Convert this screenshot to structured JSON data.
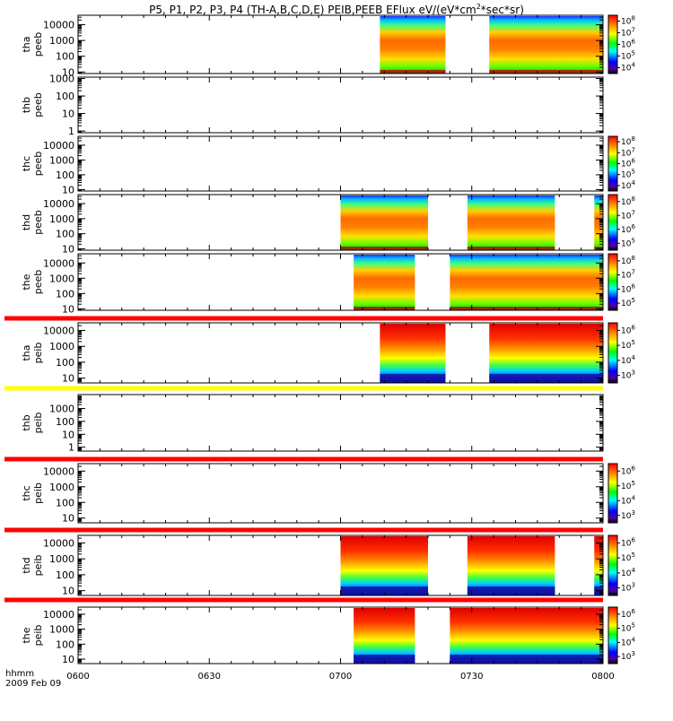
{
  "chart_data": {
    "type": "heatmap",
    "title": "P5, P1, P2, P3, P4 (TH-A,B,C,D,E) PEIB,PEEB EFlux eV/(eV*cm^2*sec*sr)",
    "title_parts": {
      "main": "P5, P1, P2, P3, P4 (TH-A,B,C,D,E) PEIB,PEEB EFlux eV/(eV*cm",
      "sup": "2",
      "tail": "*sec*sr)"
    },
    "x_axis": {
      "label_line1": "hhmm",
      "label_line2": "2009 Feb 09",
      "range": [
        "0600",
        "0800"
      ],
      "ticks": [
        "0600",
        "0630",
        "0700",
        "0730",
        "0800"
      ]
    },
    "panels": [
      {
        "probe": "tha",
        "product": "peeb",
        "ylim": [
          8,
          40000
        ],
        "log": true,
        "ytick_labels": [
          "10",
          "100",
          "1000",
          "10000"
        ],
        "cbar": {
          "colors": "rainbow",
          "labels": [
            "10^8",
            "10^7",
            "10^6",
            "10^5",
            "10^4"
          ]
        },
        "intervals": [
          {
            "start": "0709",
            "end": "0724"
          },
          {
            "start": "0734",
            "end": "0800"
          }
        ],
        "kind": "electron"
      },
      {
        "probe": "thb",
        "product": "peeb",
        "ylim": [
          0.8,
          1200
        ],
        "log": true,
        "ytick_labels": [
          "1",
          "10",
          "100",
          "1000"
        ],
        "cbar": null,
        "intervals": [],
        "kind": "electron"
      },
      {
        "probe": "thc",
        "product": "peeb",
        "ylim": [
          8,
          40000
        ],
        "log": true,
        "ytick_labels": [
          "10",
          "100",
          "1000",
          "10000"
        ],
        "cbar": {
          "colors": "rainbow",
          "labels": [
            "10^8",
            "10^7",
            "10^6",
            "10^5",
            "10^4"
          ]
        },
        "intervals": [],
        "kind": "electron"
      },
      {
        "probe": "thd",
        "product": "peeb",
        "ylim": [
          8,
          40000
        ],
        "log": true,
        "ytick_labels": [
          "10",
          "100",
          "1000",
          "10000"
        ],
        "cbar": {
          "colors": "rainbow",
          "labels": [
            "10^8",
            "10^7",
            "10^6",
            "10^5"
          ]
        },
        "intervals": [
          {
            "start": "0700",
            "end": "0720"
          },
          {
            "start": "0729",
            "end": "0749"
          },
          {
            "start": "0758",
            "end": "0800"
          }
        ],
        "kind": "electron"
      },
      {
        "probe": "the",
        "product": "peeb",
        "ylim": [
          8,
          40000
        ],
        "log": true,
        "ytick_labels": [
          "10",
          "100",
          "1000",
          "10000"
        ],
        "cbar": {
          "colors": "rainbow",
          "labels": [
            "10^8",
            "10^7",
            "10^6",
            "10^5"
          ]
        },
        "intervals": [
          {
            "start": "0703",
            "end": "0717"
          },
          {
            "start": "0725",
            "end": "0800"
          }
        ],
        "kind": "electron"
      },
      {
        "probe": "tha",
        "product": "peib",
        "ylim": [
          5,
          30000
        ],
        "log": true,
        "ytick_labels": [
          "10",
          "100",
          "1000",
          "10000"
        ],
        "cbar": {
          "colors": "rainbow",
          "labels": [
            "10^6",
            "10^5",
            "10^4",
            "10^3"
          ]
        },
        "intervals": [
          {
            "start": "0709",
            "end": "0724"
          },
          {
            "start": "0734",
            "end": "0800"
          }
        ],
        "kind": "ion"
      },
      {
        "probe": "thb",
        "product": "peib",
        "ylim": [
          0.5,
          12000
        ],
        "log": true,
        "ytick_labels": [
          "1",
          "10",
          "100",
          "1000"
        ],
        "cbar": null,
        "intervals": [],
        "kind": "ion"
      },
      {
        "probe": "thc",
        "product": "peib",
        "ylim": [
          5,
          30000
        ],
        "log": true,
        "ytick_labels": [
          "10",
          "100",
          "1000",
          "10000"
        ],
        "cbar": {
          "colors": "rainbow",
          "labels": [
            "10^6",
            "10^5",
            "10^4",
            "10^3"
          ]
        },
        "intervals": [],
        "kind": "ion"
      },
      {
        "probe": "thd",
        "product": "peib",
        "ylim": [
          5,
          30000
        ],
        "log": true,
        "ytick_labels": [
          "10",
          "100",
          "1000",
          "10000"
        ],
        "cbar": {
          "colors": "rainbow",
          "labels": [
            "10^6",
            "10^5",
            "10^4",
            "10^3"
          ]
        },
        "intervals": [
          {
            "start": "0700",
            "end": "0720"
          },
          {
            "start": "0729",
            "end": "0749"
          },
          {
            "start": "0758",
            "end": "0800"
          }
        ],
        "kind": "ion"
      },
      {
        "probe": "the",
        "product": "peib",
        "ylim": [
          5,
          30000
        ],
        "log": true,
        "ytick_labels": [
          "10",
          "100",
          "1000",
          "10000"
        ],
        "cbar": {
          "colors": "rainbow",
          "labels": [
            "10^6",
            "10^5",
            "10^4",
            "10^3"
          ]
        },
        "intervals": [
          {
            "start": "0703",
            "end": "0717"
          },
          {
            "start": "0725",
            "end": "0800"
          }
        ],
        "kind": "ion"
      }
    ],
    "separator_colors": [
      "#ff0000",
      "#ffff00",
      "#ff0000",
      "#ff0000",
      "#ff0000"
    ]
  }
}
